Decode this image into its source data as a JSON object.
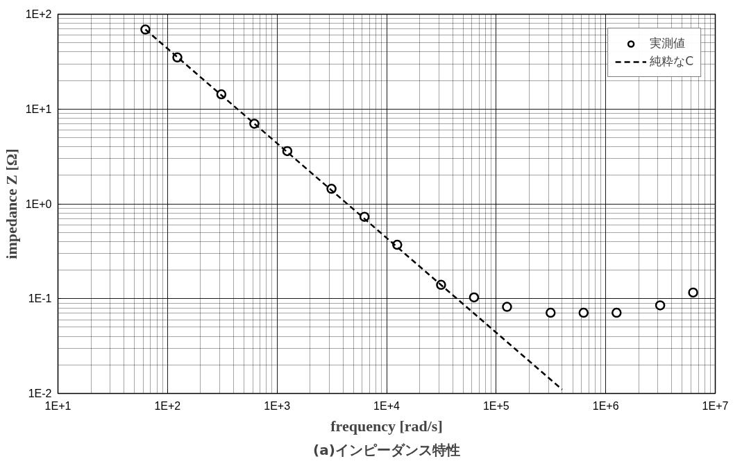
{
  "chart_data": {
    "type": "scatter",
    "title": "(a)インピーダンス特性",
    "xlabel": "frequency [rad/s]",
    "ylabel": "impedance Z [Ω]",
    "log": "xy",
    "grid": true,
    "legend": "top right",
    "xlim": [
      10,
      10000000
    ],
    "ylim": [
      0.01,
      100
    ],
    "xticks": [
      {
        "value": 10,
        "label": "1E+1"
      },
      {
        "value": 100,
        "label": "1E+2"
      },
      {
        "value": 1000,
        "label": "1E+3"
      },
      {
        "value": 10000,
        "label": "1E+4"
      },
      {
        "value": 100000,
        "label": "1E+5"
      },
      {
        "value": 1000000,
        "label": "1E+6"
      },
      {
        "value": 10000000,
        "label": "1E+7"
      }
    ],
    "yticks": [
      {
        "value": 0.01,
        "label": "1E-2"
      },
      {
        "value": 0.1,
        "label": "1E-1"
      },
      {
        "value": 1,
        "label": "1E+0"
      },
      {
        "value": 10,
        "label": "1E+1"
      },
      {
        "value": 100,
        "label": "1E+2"
      }
    ],
    "series": [
      {
        "name": "実測値",
        "marker": "circle",
        "color": "#000000",
        "x": [
          62.8,
          123,
          310,
          620,
          1240,
          3140,
          6280,
          12500,
          31400,
          62800,
          125600,
          314000,
          628000,
          1256000,
          3140000,
          6280000
        ],
        "values": [
          69,
          35,
          14.3,
          7.0,
          3.6,
          1.44,
          0.73,
          0.37,
          0.14,
          0.103,
          0.082,
          0.071,
          0.071,
          0.071,
          0.085,
          0.116
        ]
      },
      {
        "name": "純粋なC",
        "type": "line",
        "line_style": "dashed",
        "marker": "none",
        "color": "#000000",
        "x": [
          62.8,
          400000
        ],
        "values": [
          69,
          0.011
        ]
      }
    ]
  }
}
